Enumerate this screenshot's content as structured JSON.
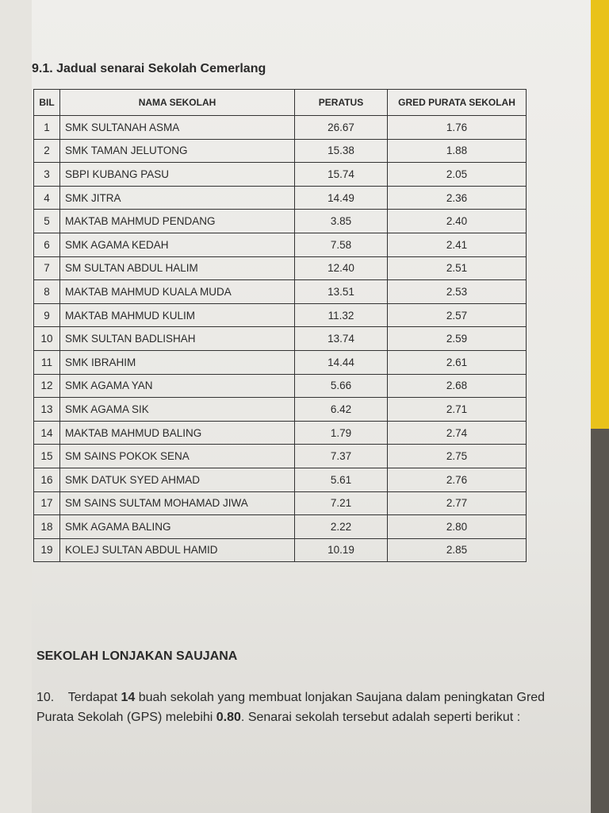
{
  "section_title": "9.1. Jadual senarai Sekolah Cemerlang",
  "table": {
    "headers": [
      "BIL",
      "NAMA SEKOLAH",
      "PERATUS",
      "GRED PURATA SEKOLAH"
    ],
    "rows": [
      [
        "1",
        "SMK SULTANAH ASMA",
        "26.67",
        "1.76"
      ],
      [
        "2",
        "SMK TAMAN JELUTONG",
        "15.38",
        "1.88"
      ],
      [
        "3",
        "SBPI KUBANG PASU",
        "15.74",
        "2.05"
      ],
      [
        "4",
        "SMK JITRA",
        "14.49",
        "2.36"
      ],
      [
        "5",
        "MAKTAB MAHMUD PENDANG",
        "3.85",
        "2.40"
      ],
      [
        "6",
        "SMK AGAMA KEDAH",
        "7.58",
        "2.41"
      ],
      [
        "7",
        "SM SULTAN ABDUL HALIM",
        "12.40",
        "2.51"
      ],
      [
        "8",
        "MAKTAB MAHMUD KUALA MUDA",
        "13.51",
        "2.53"
      ],
      [
        "9",
        "MAKTAB MAHMUD KULIM",
        "11.32",
        "2.57"
      ],
      [
        "10",
        "SMK SULTAN BADLISHAH",
        "13.74",
        "2.59"
      ],
      [
        "11",
        "SMK IBRAHIM",
        "14.44",
        "2.61"
      ],
      [
        "12",
        "SMK AGAMA YAN",
        "5.66",
        "2.68"
      ],
      [
        "13",
        "SMK AGAMA SIK",
        "6.42",
        "2.71"
      ],
      [
        "14",
        "MAKTAB MAHMUD BALING",
        "1.79",
        "2.74"
      ],
      [
        "15",
        "SM SAINS POKOK SENA",
        "7.37",
        "2.75"
      ],
      [
        "16",
        "SMK DATUK SYED AHMAD",
        "5.61",
        "2.76"
      ],
      [
        "17",
        "SM SAINS SULTAM MOHAMAD JIWA",
        "7.21",
        "2.77"
      ],
      [
        "18",
        "SMK AGAMA BALING",
        "2.22",
        "2.80"
      ],
      [
        "19",
        "KOLEJ SULTAN ABDUL HAMID",
        "10.19",
        "2.85"
      ]
    ]
  },
  "heading2": "SEKOLAH LONJAKAN SAUJANA",
  "paragraph": {
    "number": "10.",
    "text_1": "Terdapat ",
    "count": "14",
    "text_2": " buah sekolah yang membuat lonjakan Saujana dalam peningkatan Gred Purata Sekolah (GPS) melebihi ",
    "threshold": "0.80",
    "text_3": ". Senarai sekolah tersebut adalah seperti berikut :"
  }
}
